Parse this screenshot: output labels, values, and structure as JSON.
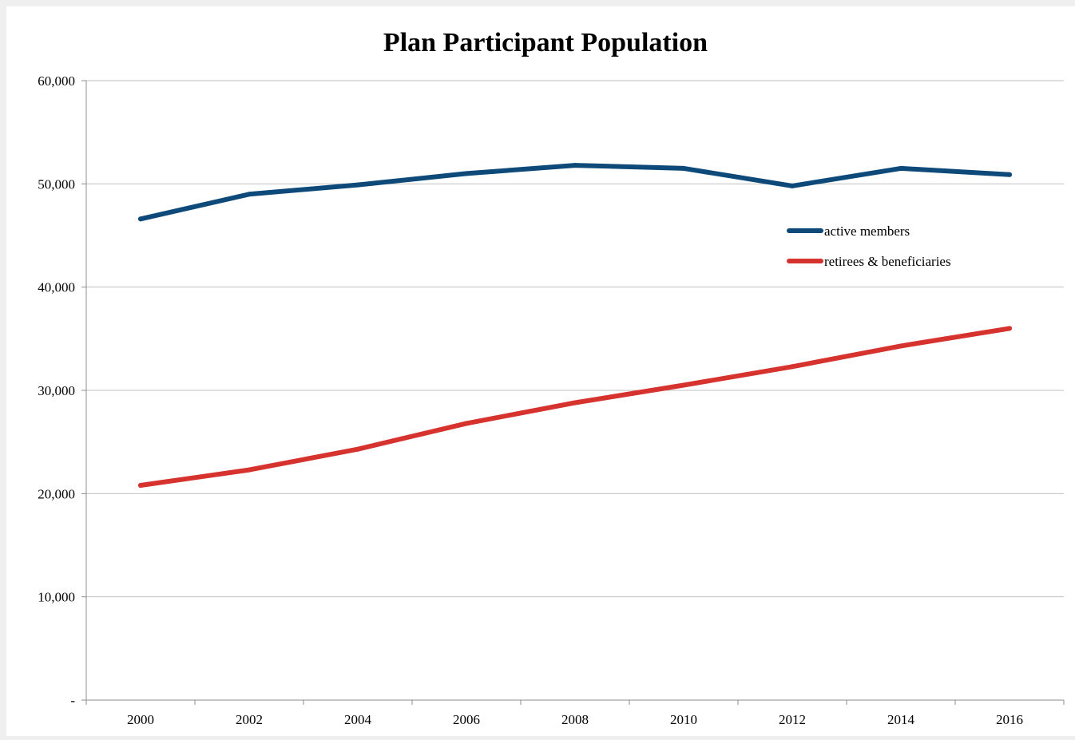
{
  "chart_data": {
    "type": "line",
    "title": "Plan Participant Population",
    "xlabel": "",
    "ylabel": "",
    "categories": [
      "2000",
      "2002",
      "2004",
      "2006",
      "2008",
      "2010",
      "2012",
      "2014",
      "2016"
    ],
    "y_tick_labels": [
      "-",
      "10,000",
      "20,000",
      "30,000",
      "40,000",
      "50,000",
      "60,000"
    ],
    "ylim": [
      0,
      60000
    ],
    "grid": true,
    "legend_position": "right",
    "series": [
      {
        "name": "active members",
        "color": "#0d4a7a",
        "values": [
          46600,
          49000,
          49900,
          51000,
          51800,
          51500,
          49800,
          51500,
          50900
        ]
      },
      {
        "name": "retirees & beneficiaries",
        "color": "#d6322e",
        "values": [
          20800,
          22300,
          24300,
          26800,
          28800,
          30500,
          32300,
          34300,
          36000
        ]
      }
    ]
  }
}
